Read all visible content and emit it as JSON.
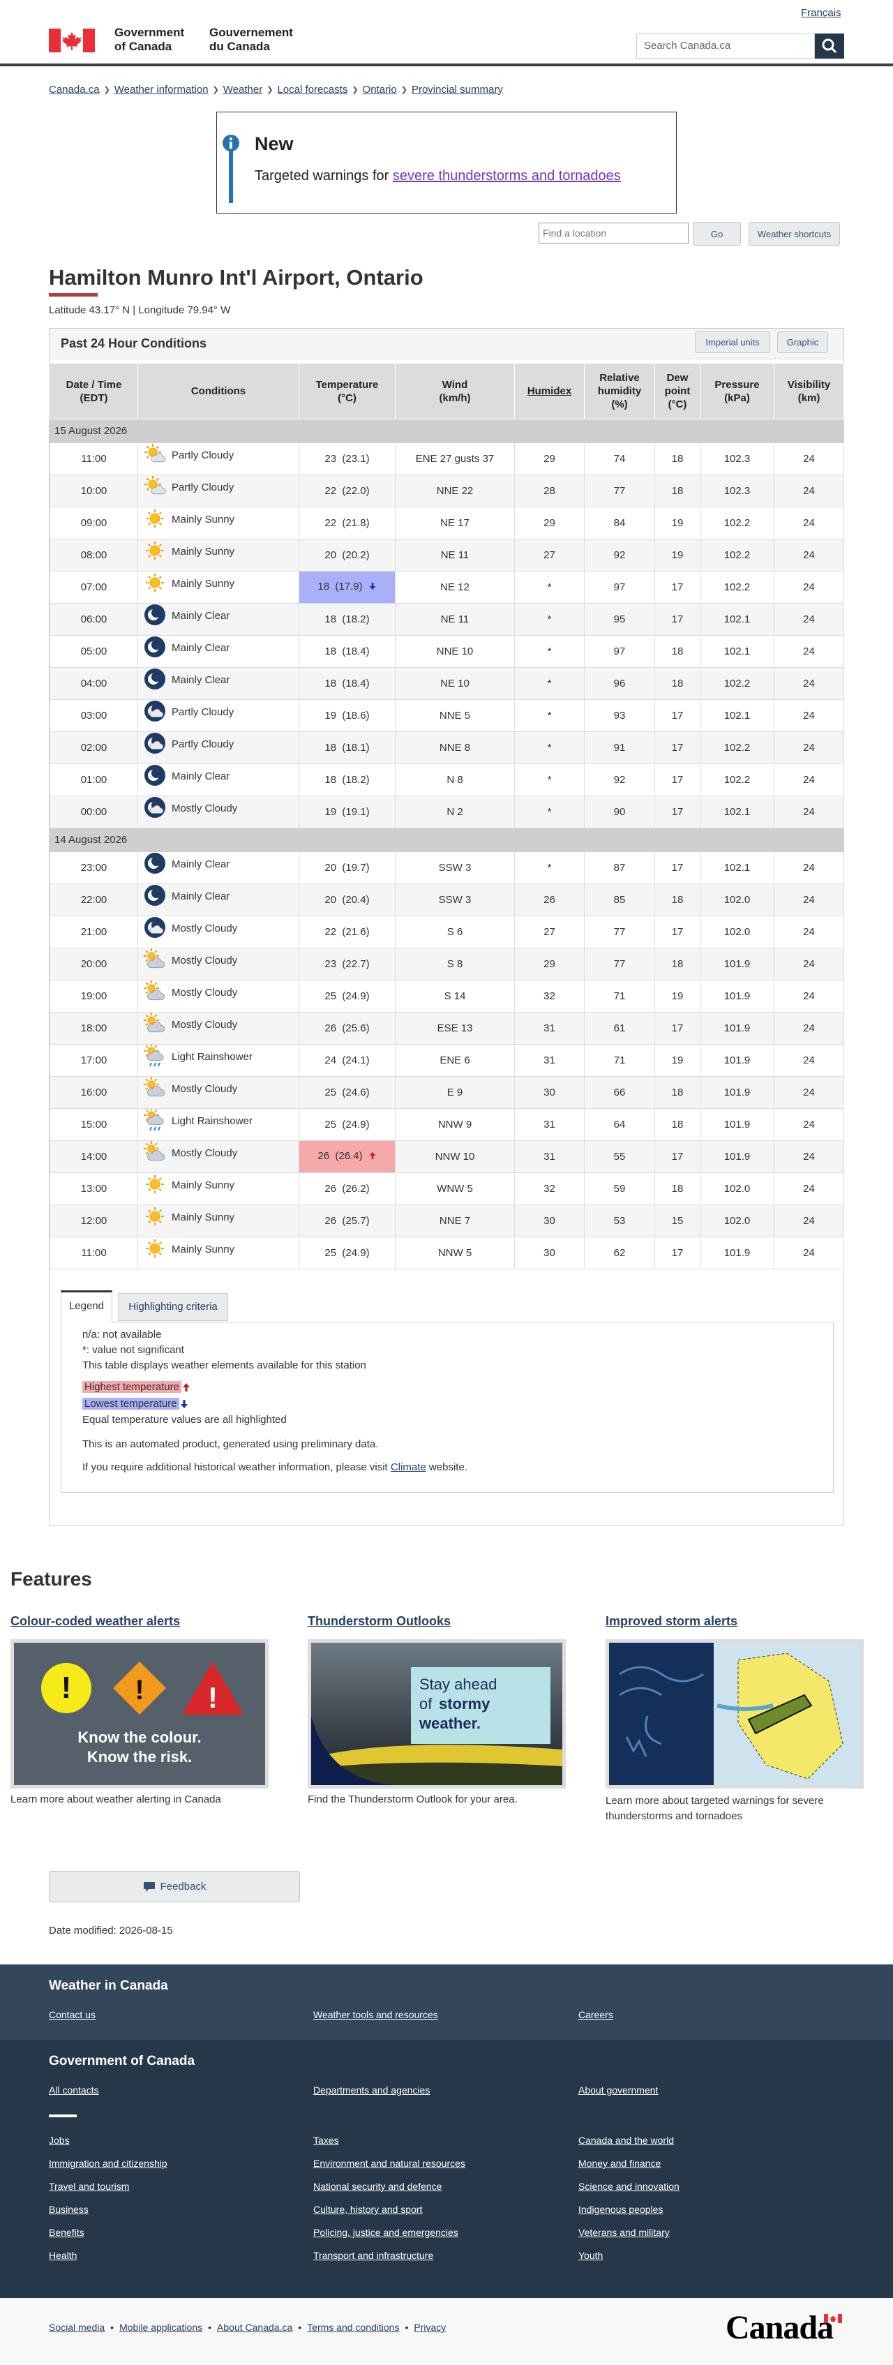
{
  "header": {
    "language": "Français",
    "name_en": "Government of Canada",
    "name_fr": "Gouvernement du Canada",
    "search_placeholder": "Search Canada.ca"
  },
  "breadcrumb": [
    "Canada.ca",
    "Weather information",
    "Weather",
    "Local forecasts",
    "Ontario",
    "Provincial summary"
  ],
  "alert": {
    "title": "New",
    "text": "Targeted warnings for ",
    "link": "severe thunderstorms and tornadoes"
  },
  "location_search": {
    "placeholder": "Find a location",
    "go": "Go",
    "shortcuts": "Weather shortcuts"
  },
  "station": {
    "name": "Hamilton Munro Int'l Airport, Ontario",
    "coordinates": "Latitude 43.17° N | Longitude 79.94° W"
  },
  "conditions": {
    "title": "Past 24 Hour Conditions",
    "buttons": [
      "Imperial units",
      "Graphic"
    ],
    "columns": [
      "Date / Time\n(EDT)",
      "Conditions",
      "Temperature\n(°C)",
      "Wind\n(km/h)",
      "Humidex",
      "Relative\nhumidity\n(%)",
      "Dew\npoint\n(°C)",
      "Pressure\n(kPa)",
      "Visibility\n(km)"
    ],
    "groups": [
      {
        "date": "15 August 2026",
        "rows": [
          {
            "icon": "sun-cloud",
            "cells": [
              "11:00",
              "Partly Cloudy",
              "23  (23.1)",
              "ENE 27 gusts 37",
              "29",
              "74",
              "18",
              "102.3",
              "24"
            ]
          },
          {
            "icon": "sun-cloud",
            "cells": [
              "10:00",
              "Partly Cloudy",
              "22  (22.0)",
              "NNE 22",
              "28",
              "77",
              "18",
              "102.3",
              "24"
            ]
          },
          {
            "icon": "sun",
            "cells": [
              "09:00",
              "Mainly Sunny",
              "22  (21.8)",
              "NE 17",
              "29",
              "84",
              "19",
              "102.2",
              "24"
            ]
          },
          {
            "icon": "sun",
            "cells": [
              "08:00",
              "Mainly Sunny",
              "20  (20.2)",
              "NE 11",
              "27",
              "92",
              "19",
              "102.2",
              "24"
            ]
          },
          {
            "icon": "sun",
            "highlight": "low",
            "cells": [
              "07:00",
              "Mainly Sunny",
              "18  (17.9)",
              "NE 12",
              "*",
              "97",
              "17",
              "102.2",
              "24"
            ]
          },
          {
            "icon": "moon",
            "cells": [
              "06:00",
              "Mainly Clear",
              "18  (18.2)",
              "NE 11",
              "*",
              "95",
              "17",
              "102.1",
              "24"
            ]
          },
          {
            "icon": "moon",
            "cells": [
              "05:00",
              "Mainly Clear",
              "18  (18.4)",
              "NNE 10",
              "*",
              "97",
              "18",
              "102.1",
              "24"
            ]
          },
          {
            "icon": "moon",
            "cells": [
              "04:00",
              "Mainly Clear",
              "18  (18.4)",
              "NE 10",
              "*",
              "96",
              "18",
              "102.2",
              "24"
            ]
          },
          {
            "icon": "moon-cloud",
            "cells": [
              "03:00",
              "Partly Cloudy",
              "19  (18.6)",
              "NNE 5",
              "*",
              "93",
              "17",
              "102.1",
              "24"
            ]
          },
          {
            "icon": "moon-cloud",
            "cells": [
              "02:00",
              "Partly Cloudy",
              "18  (18.1)",
              "NNE 8",
              "*",
              "91",
              "17",
              "102.2",
              "24"
            ]
          },
          {
            "icon": "moon",
            "cells": [
              "01:00",
              "Mainly Clear",
              "18  (18.2)",
              "N 8",
              "*",
              "92",
              "17",
              "102.2",
              "24"
            ]
          },
          {
            "icon": "moon-cloud",
            "cells": [
              "00:00",
              "Mostly Cloudy",
              "19  (19.1)",
              "N 2",
              "*",
              "90",
              "17",
              "102.1",
              "24"
            ]
          }
        ]
      },
      {
        "date": "14 August 2026",
        "rows": [
          {
            "icon": "moon",
            "cells": [
              "23:00",
              "Mainly Clear",
              "20  (19.7)",
              "SSW 3",
              "*",
              "87",
              "17",
              "102.1",
              "24"
            ]
          },
          {
            "icon": "moon",
            "cells": [
              "22:00",
              "Mainly Clear",
              "20  (20.4)",
              "SSW 3",
              "26",
              "85",
              "18",
              "102.0",
              "24"
            ]
          },
          {
            "icon": "moon-cloud",
            "cells": [
              "21:00",
              "Mostly Cloudy",
              "22  (21.6)",
              "S 6",
              "27",
              "77",
              "17",
              "102.0",
              "24"
            ]
          },
          {
            "icon": "cloud-sun",
            "cells": [
              "20:00",
              "Mostly Cloudy",
              "23  (22.7)",
              "S 8",
              "29",
              "77",
              "18",
              "101.9",
              "24"
            ]
          },
          {
            "icon": "cloud-sun",
            "cells": [
              "19:00",
              "Mostly Cloudy",
              "25  (24.9)",
              "S 14",
              "32",
              "71",
              "19",
              "101.9",
              "24"
            ]
          },
          {
            "icon": "cloud-sun",
            "cells": [
              "18:00",
              "Mostly Cloudy",
              "26  (25.6)",
              "ESE 13",
              "31",
              "61",
              "17",
              "101.9",
              "24"
            ]
          },
          {
            "icon": "rain-sun",
            "cells": [
              "17:00",
              "Light Rainshower",
              "24  (24.1)",
              "ENE 6",
              "31",
              "71",
              "19",
              "101.9",
              "24"
            ]
          },
          {
            "icon": "cloud-sun",
            "cells": [
              "16:00",
              "Mostly Cloudy",
              "25  (24.6)",
              "E 9",
              "30",
              "66",
              "18",
              "101.9",
              "24"
            ]
          },
          {
            "icon": "rain-sun",
            "cells": [
              "15:00",
              "Light Rainshower",
              "25  (24.9)",
              "NNW 9",
              "31",
              "64",
              "18",
              "101.9",
              "24"
            ]
          },
          {
            "icon": "cloud-sun",
            "highlight": "high",
            "cells": [
              "14:00",
              "Mostly Cloudy",
              "26  (26.4)",
              "NNW 10",
              "31",
              "55",
              "17",
              "101.9",
              "24"
            ]
          },
          {
            "icon": "sun",
            "cells": [
              "13:00",
              "Mainly Sunny",
              "26  (26.2)",
              "WNW 5",
              "32",
              "59",
              "18",
              "102.0",
              "24"
            ]
          },
          {
            "icon": "sun",
            "cells": [
              "12:00",
              "Mainly Sunny",
              "26  (25.7)",
              "NNE 7",
              "30",
              "53",
              "15",
              "102.0",
              "24"
            ]
          },
          {
            "icon": "sun",
            "cells": [
              "11:00",
              "Mainly Sunny",
              "25  (24.9)",
              "NNW 5",
              "30",
              "62",
              "17",
              "101.9",
              "24"
            ]
          }
        ]
      }
    ]
  },
  "legend": {
    "tabs": [
      "Legend",
      "Highlighting criteria"
    ],
    "notes": [
      "n/a: not available",
      "*: value not significant",
      "This table displays weather elements available for this station"
    ],
    "highest": "Highest temperature",
    "lowest": "Lowest temperature",
    "equal": "Equal temperature values are all highlighted",
    "automated": "This is an automated product, generated using preliminary data.",
    "climate": {
      "before": "If you require additional historical weather information, please visit ",
      "link": "Climate",
      "after": " website."
    }
  },
  "features": {
    "title": "Features",
    "cards": [
      {
        "title": "Colour-coded weather alerts",
        "image_text": [
          "Know the colour.",
          "Know the risk."
        ],
        "caption": "Learn more about weather alerting in Canada"
      },
      {
        "title": "Thunderstorm Outlooks",
        "image_text": [
          "Stay ahead",
          "of",
          "stormy",
          "weather."
        ],
        "caption": "Find the Thunderstorm Outlook for your area."
      },
      {
        "title": "Improved storm alerts",
        "caption": "Learn more about targeted warnings for severe thunderstorms and tornadoes"
      }
    ]
  },
  "feedback": "Feedback",
  "date_modified": "Date modified: 2026-08-15",
  "footer": {
    "weather": {
      "title": "Weather in Canada",
      "links": [
        "Contact us",
        "Weather tools and resources",
        "Careers"
      ]
    },
    "government": {
      "title": "Government of Canada",
      "links": [
        "All contacts",
        "Departments and agencies",
        "About government"
      ],
      "topics": [
        "Jobs",
        "Taxes",
        "Canada and the world",
        "Immigration and citizenship",
        "Environment and natural resources",
        "Money and finance",
        "Travel and tourism",
        "National security and defence",
        "Science and innovation",
        "Business",
        "Culture, history and sport",
        "Indigenous peoples",
        "Benefits",
        "Policing, justice and emergencies",
        "Veterans and military",
        "Health",
        "Transport and infrastructure",
        "Youth"
      ]
    }
  },
  "bottom": {
    "links": [
      "Social media",
      "Mobile applications",
      "About Canada.ca",
      "Terms and conditions",
      "Privacy"
    ],
    "wordmark": "Canada"
  }
}
